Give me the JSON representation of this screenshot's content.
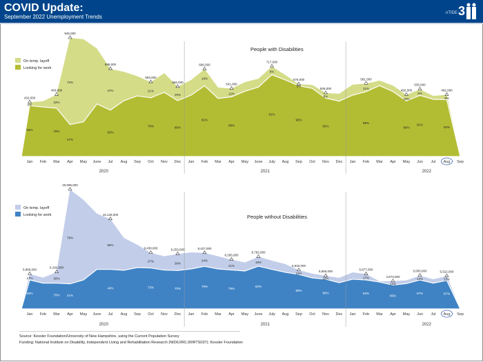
{
  "header": {
    "title": "COVID Update:",
    "subtitle": "September 2022 Unemployment Trends",
    "logo_text": "nTIDE"
  },
  "footer": {
    "source": "Source: Kessler Foundation/University of New Hampshire, using the Current Population Survey",
    "funding": "Funding: National Institute on Disability, Independent Living and Rehabilitation Research (NIDILRR) (90RTS037); Kessler Foundation"
  },
  "chart_data": [
    {
      "type": "area",
      "title": "People with Disabilities",
      "stacked": true,
      "unit": "people",
      "months": [
        "Jan",
        "Feb",
        "Mar",
        "Apr",
        "May",
        "June",
        "Jul",
        "Aug",
        "Sep",
        "Oct",
        "Nov",
        "Dec",
        "Jan",
        "Feb",
        "Mar",
        "Apr",
        "May",
        "June",
        "July",
        "Aug",
        "Sep",
        "Oct",
        "Nov",
        "Dec",
        "Jan",
        "Feb",
        "Mar",
        "Apr",
        "May",
        "Jun",
        "Jul",
        "Aug",
        "Sep"
      ],
      "years": [
        "2020",
        "2021",
        "2022"
      ],
      "highlight_month": "Aug",
      "colors": {
        "layoff": "#d4dc88",
        "work": "#b3bd34"
      },
      "legend": [
        "On temp. layoff",
        "Looking for work"
      ],
      "total": [
        432000,
        441000,
        493000,
        945000,
        935000,
        860000,
        698000,
        675000,
        640000,
        593000,
        664000,
        556000,
        610000,
        696000,
        550000,
        541000,
        593000,
        620000,
        717000,
        650000,
        576000,
        571000,
        506000,
        500000,
        573000,
        581000,
        605000,
        565000,
        492000,
        535000,
        483000,
        492000,
        0
      ],
      "looking_for_work": [
        406000,
        395000,
        385000,
        255000,
        276000,
        419000,
        370000,
        445000,
        483000,
        468000,
        511000,
        445000,
        489000,
        564000,
        463000,
        476000,
        520000,
        553000,
        652000,
        610000,
        564000,
        543000,
        466000,
        441000,
        489000,
        517000,
        565000,
        518000,
        443000,
        487000,
        456000,
        453000,
        0
      ],
      "annotations": [
        {
          "i": 0,
          "total": "432,000",
          "layoff": "6%",
          "work": "94%"
        },
        {
          "i": 2,
          "total": "493,000",
          "layoff": "22%",
          "work": "78%"
        },
        {
          "i": 3,
          "total": "945,000",
          "layoff": "73%",
          "work": "27%"
        },
        {
          "i": 6,
          "total": "698,000",
          "layoff": "47%",
          "work": "53%"
        },
        {
          "i": 9,
          "total": "593,000",
          "layoff": "21%",
          "work": "79%"
        },
        {
          "i": 11,
          "total": "556,000",
          "layoff": "20%",
          "work": "80%"
        },
        {
          "i": 13,
          "total": "696,000",
          "layoff": "19%",
          "work": "81%"
        },
        {
          "i": 15,
          "total": "541,000",
          "layoff": "12%",
          "work": "88%"
        },
        {
          "i": 18,
          "total": "717,000",
          "layoff": "9%",
          "work": "91%"
        },
        {
          "i": 20,
          "total": "576,000",
          "layoff": "2%",
          "work": "98%"
        },
        {
          "i": 22,
          "total": "506,000",
          "layoff": "8%",
          "work": "92%"
        },
        {
          "i": 25,
          "total": "581,000",
          "layoff": "11%",
          "work": "89%"
        },
        {
          "i": 28,
          "total": "492,000",
          "layoff": "10%",
          "work": "90%"
        },
        {
          "i": 29,
          "total": "535,000",
          "layoff": "9%",
          "work": "91%"
        },
        {
          "i": 31,
          "total": "492,000",
          "layoff": "8%",
          "work": "92%"
        }
      ]
    },
    {
      "type": "area",
      "title": "People without Disabilities",
      "stacked": true,
      "unit": "people",
      "months": [
        "Jan",
        "Feb",
        "Mar",
        "Apr",
        "May",
        "June",
        "Jul",
        "Aug",
        "Sep",
        "Oct",
        "Nov",
        "Dec",
        "Jan",
        "Feb",
        "Mar",
        "Apr",
        "May",
        "June",
        "July",
        "Aug",
        "Sep",
        "Oct",
        "Nov",
        "Dec",
        "Jan",
        "Feb",
        "Mar",
        "Apr",
        "May",
        "Jun",
        "Jul",
        "Aug",
        "Sep"
      ],
      "years": [
        "2020",
        "2021",
        "2022"
      ],
      "highlight_month": "Aug",
      "colors": {
        "layoff": "#c2cde9",
        "work": "#3f83c5"
      },
      "legend": [
        "On temp. layoff",
        "Looking for work"
      ],
      "total": [
        5866000,
        5270000,
        6192000,
        20095000,
        18360000,
        16040000,
        15126000,
        11970000,
        10800000,
        9438000,
        8870000,
        9253000,
        9530000,
        9427000,
        8870000,
        8295000,
        7820000,
        8782000,
        8130000,
        7550000,
        6532000,
        5960000,
        5556000,
        5230000,
        6160000,
        5877000,
        4650000,
        4673000,
        4800000,
        5605000,
        5000000,
        5522000,
        0
      ],
      "looking_for_work": [
        4869000,
        4340000,
        4334000,
        4220000,
        4880000,
        6660000,
        6655000,
        6500000,
        6970000,
        6890000,
        6540000,
        6477000,
        6740000,
        7164000,
        6740000,
        6553000,
        6390000,
        7201000,
        6660000,
        6160000,
        5813000,
        5230000,
        5000000,
        4420000,
        5000000,
        4878000,
        4530000,
        4019000,
        4260000,
        4876000,
        4340000,
        4804000,
        0
      ],
      "annotations": [
        {
          "i": 0,
          "total": "5,866,000",
          "layoff": "17%",
          "work": "83%"
        },
        {
          "i": 2,
          "total": "6,192,000",
          "layoff": "30%",
          "work": "70%"
        },
        {
          "i": 3,
          "total": "20,095,000",
          "layoff": "79%",
          "work": "21%"
        },
        {
          "i": 6,
          "total": "15,126,000",
          "layoff": "56%",
          "work": "44%"
        },
        {
          "i": 9,
          "total": "9,438,000",
          "layoff": "27%",
          "work": "73%"
        },
        {
          "i": 11,
          "total": "9,253,000",
          "layoff": "30%",
          "work": "70%"
        },
        {
          "i": 13,
          "total": "9,427,000",
          "layoff": "24%",
          "work": "76%"
        },
        {
          "i": 15,
          "total": "8,295,000",
          "layoff": "21%",
          "work": "79%"
        },
        {
          "i": 17,
          "total": "8,782,000",
          "layoff": "18%",
          "work": "82%"
        },
        {
          "i": 20,
          "total": "6,532,000",
          "layoff": "11%",
          "work": "89%"
        },
        {
          "i": 22,
          "total": "5,556,000",
          "layoff": "10%",
          "work": "90%"
        },
        {
          "i": 25,
          "total": "5,877,000",
          "layoff": "17%",
          "work": "83%"
        },
        {
          "i": 27,
          "total": "4,673,000",
          "layoff": "14%",
          "work": "86%"
        },
        {
          "i": 29,
          "total": "5,605,000",
          "layoff": "13%",
          "work": "87%"
        },
        {
          "i": 31,
          "total": "5,522,000",
          "layoff": "13%",
          "work": "87%"
        }
      ]
    }
  ]
}
